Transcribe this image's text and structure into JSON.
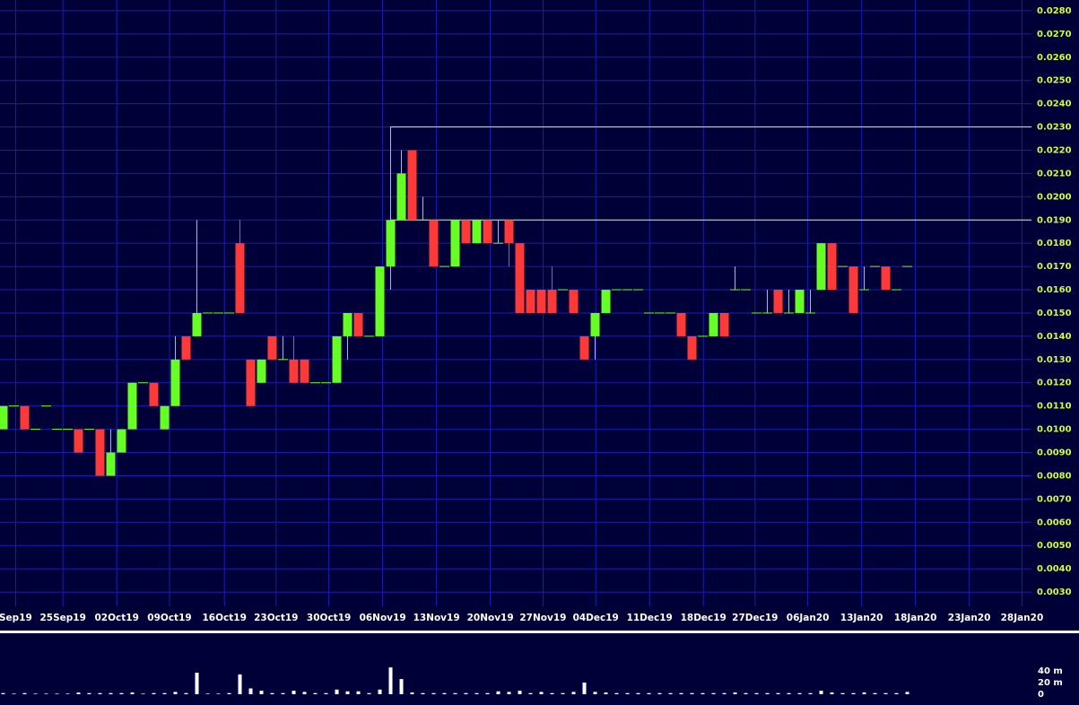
{
  "chart_data": {
    "type": "candlestick",
    "x": [
      0,
      1,
      2,
      3,
      4,
      5,
      6,
      7,
      8,
      9,
      10,
      11,
      12,
      13,
      14,
      15,
      16,
      17,
      18,
      19,
      20,
      21,
      22,
      23,
      24,
      25,
      26,
      27,
      28,
      29,
      30,
      31,
      32,
      33,
      34,
      35,
      36,
      37,
      38,
      39,
      40,
      41,
      42,
      43,
      44,
      45,
      46,
      47,
      48,
      49,
      50,
      51,
      52,
      53,
      54,
      55,
      56,
      57,
      58,
      59,
      60,
      61,
      62,
      63,
      64,
      65,
      66,
      67,
      68,
      69,
      70,
      71,
      72,
      73,
      74,
      75,
      76,
      77,
      78,
      79,
      80,
      81,
      82,
      83,
      84
    ],
    "open": [
      0.01,
      0.011,
      0.011,
      0.01,
      0.011,
      0.01,
      0.01,
      0.01,
      0.01,
      0.01,
      0.008,
      0.009,
      0.01,
      0.012,
      0.012,
      0.01,
      0.011,
      0.014,
      0.014,
      0.015,
      0.015,
      0.015,
      0.018,
      0.013,
      0.012,
      0.014,
      0.013,
      0.013,
      0.013,
      0.012,
      0.012,
      0.012,
      0.014,
      0.015,
      0.014,
      0.014,
      0.017,
      0.019,
      0.022,
      0.019,
      0.019,
      0.017,
      0.017,
      0.019,
      0.018,
      0.019,
      0.018,
      0.019,
      0.018,
      0.016,
      0.016,
      0.016,
      0.016,
      0.016,
      0.014,
      0.014,
      0.015,
      0.016,
      0.016,
      0.016,
      0.015,
      0.015,
      0.015,
      0.015,
      0.014,
      0.014,
      0.014,
      0.015,
      0.016,
      0.016,
      0.015,
      0.015,
      0.016,
      0.015,
      0.015,
      0.015,
      0.016,
      0.018,
      0.017,
      0.017,
      0.016,
      0.017,
      0.017,
      0.016,
      0.017
    ],
    "high": [
      0.011,
      0.011,
      0.011,
      0.01,
      0.011,
      0.01,
      0.01,
      0.01,
      0.01,
      0.01,
      0.01,
      0.01,
      0.012,
      0.012,
      0.012,
      0.011,
      0.014,
      0.014,
      0.019,
      0.015,
      0.015,
      0.015,
      0.019,
      0.013,
      0.013,
      0.014,
      0.014,
      0.014,
      0.013,
      0.012,
      0.012,
      0.014,
      0.015,
      0.015,
      0.014,
      0.017,
      0.023,
      0.022,
      0.022,
      0.02,
      0.019,
      0.017,
      0.019,
      0.019,
      0.019,
      0.019,
      0.019,
      0.019,
      0.018,
      0.016,
      0.016,
      0.017,
      0.016,
      0.016,
      0.014,
      0.015,
      0.016,
      0.016,
      0.016,
      0.016,
      0.015,
      0.015,
      0.015,
      0.015,
      0.014,
      0.014,
      0.015,
      0.015,
      0.017,
      0.016,
      0.015,
      0.016,
      0.016,
      0.016,
      0.016,
      0.016,
      0.018,
      0.018,
      0.017,
      0.017,
      0.017,
      0.017,
      0.017,
      0.016,
      0.017
    ],
    "low": [
      0.01,
      0.011,
      0.01,
      0.01,
      0.011,
      0.01,
      0.01,
      0.009,
      0.01,
      0.008,
      0.008,
      0.009,
      0.01,
      0.012,
      0.011,
      0.01,
      0.011,
      0.013,
      0.014,
      0.015,
      0.015,
      0.015,
      0.015,
      0.011,
      0.012,
      0.013,
      0.013,
      0.012,
      0.012,
      0.012,
      0.012,
      0.012,
      0.013,
      0.014,
      0.014,
      0.014,
      0.016,
      0.019,
      0.019,
      0.019,
      0.017,
      0.017,
      0.017,
      0.018,
      0.018,
      0.018,
      0.018,
      0.017,
      0.015,
      0.015,
      0.015,
      0.015,
      0.016,
      0.015,
      0.013,
      0.013,
      0.015,
      0.016,
      0.016,
      0.016,
      0.015,
      0.015,
      0.015,
      0.014,
      0.013,
      0.014,
      0.014,
      0.014,
      0.016,
      0.016,
      0.015,
      0.015,
      0.015,
      0.015,
      0.015,
      0.015,
      0.016,
      0.016,
      0.017,
      0.015,
      0.016,
      0.017,
      0.016,
      0.016,
      0.017
    ],
    "close": [
      0.011,
      0.011,
      0.01,
      0.01,
      0.011,
      0.01,
      0.01,
      0.009,
      0.01,
      0.008,
      0.009,
      0.01,
      0.012,
      0.012,
      0.011,
      0.011,
      0.013,
      0.013,
      0.015,
      0.015,
      0.015,
      0.015,
      0.015,
      0.011,
      0.013,
      0.013,
      0.013,
      0.012,
      0.012,
      0.012,
      0.012,
      0.014,
      0.015,
      0.014,
      0.014,
      0.017,
      0.019,
      0.021,
      0.019,
      0.019,
      0.017,
      0.017,
      0.019,
      0.018,
      0.019,
      0.018,
      0.018,
      0.018,
      0.015,
      0.015,
      0.015,
      0.015,
      0.016,
      0.015,
      0.013,
      0.015,
      0.016,
      0.016,
      0.016,
      0.016,
      0.015,
      0.015,
      0.015,
      0.014,
      0.013,
      0.014,
      0.015,
      0.014,
      0.016,
      0.016,
      0.015,
      0.015,
      0.015,
      0.015,
      0.016,
      0.015,
      0.018,
      0.016,
      0.017,
      0.015,
      0.016,
      0.017,
      0.016,
      0.016,
      0.017
    ],
    "up_color": "#66ff22",
    "down_color": "#ff3838",
    "xlim": [
      -0.25,
      95.58
    ],
    "xticks": [
      {
        "value": 1.2,
        "label": "Sep19"
      },
      {
        "value": 5.6,
        "label": "25Sep19"
      },
      {
        "value": 10.6,
        "label": "02Oct19"
      },
      {
        "value": 15.5,
        "label": "09Oct19"
      },
      {
        "value": 20.6,
        "label": "16Oct19"
      },
      {
        "value": 25.4,
        "label": "23Oct19"
      },
      {
        "value": 30.3,
        "label": "30Oct19"
      },
      {
        "value": 35.3,
        "label": "06Nov19"
      },
      {
        "value": 40.3,
        "label": "13Nov19"
      },
      {
        "value": 45.3,
        "label": "20Nov19"
      },
      {
        "value": 50.2,
        "label": "27Nov19"
      },
      {
        "value": 55.1,
        "label": "04Dec19"
      },
      {
        "value": 60.1,
        "label": "11Dec19"
      },
      {
        "value": 65.1,
        "label": "18Dec19"
      },
      {
        "value": 69.9,
        "label": "27Dec19"
      },
      {
        "value": 74.8,
        "label": "06Jan20"
      },
      {
        "value": 79.8,
        "label": "13Jan20"
      },
      {
        "value": 84.8,
        "label": "18Jan20"
      },
      {
        "value": 89.8,
        "label": "23Jan20"
      },
      {
        "value": 94.7,
        "label": "28Jan20"
      }
    ],
    "ylim": [
      0.00146,
      0.02846
    ],
    "yticks": [
      {
        "value": 0.003,
        "label": "0.0030"
      },
      {
        "value": 0.004,
        "label": "0.0040"
      },
      {
        "value": 0.005,
        "label": "0.0050"
      },
      {
        "value": 0.006,
        "label": "0.0060"
      },
      {
        "value": 0.007,
        "label": "0.0070"
      },
      {
        "value": 0.008,
        "label": "0.0080"
      },
      {
        "value": 0.009,
        "label": "0.0090"
      },
      {
        "value": 0.01,
        "label": "0.0100"
      },
      {
        "value": 0.011,
        "label": "0.0110"
      },
      {
        "value": 0.012,
        "label": "0.0120"
      },
      {
        "value": 0.013,
        "label": "0.0130"
      },
      {
        "value": 0.014,
        "label": "0.0140"
      },
      {
        "value": 0.015,
        "label": "0.0150"
      },
      {
        "value": 0.016,
        "label": "0.0160"
      },
      {
        "value": 0.017,
        "label": "0.0170"
      },
      {
        "value": 0.018,
        "label": "0.0180"
      },
      {
        "value": 0.019,
        "label": "0.0190"
      },
      {
        "value": 0.02,
        "label": "0.0200"
      },
      {
        "value": 0.021,
        "label": "0.0210"
      },
      {
        "value": 0.022,
        "label": "0.0220"
      },
      {
        "value": 0.023,
        "label": "0.0230"
      },
      {
        "value": 0.024,
        "label": "0.0240"
      },
      {
        "value": 0.025,
        "label": "0.0250"
      },
      {
        "value": 0.026,
        "label": "0.0260"
      },
      {
        "value": 0.027,
        "label": "0.0270"
      },
      {
        "value": 0.028,
        "label": "0.0280"
      }
    ],
    "grid": true,
    "grid_color": "#1c1cae",
    "hlines": [
      {
        "y": 0.023,
        "x_start": 36
      },
      {
        "y": 0.019,
        "x_start": 36
      }
    ],
    "hline_color": "#ccff66",
    "volume": {
      "values": [
        2,
        1,
        2,
        1,
        1,
        1,
        1,
        3,
        2,
        2,
        2,
        2,
        3,
        1,
        2,
        2,
        4,
        2,
        37,
        1,
        1,
        2,
        34,
        10,
        6,
        2,
        2,
        6,
        4,
        2,
        2,
        8,
        5,
        5,
        2,
        8,
        46,
        26,
        3,
        2,
        2,
        2,
        2,
        2,
        2,
        2,
        5,
        4,
        6,
        2,
        4,
        2,
        2,
        4,
        20,
        4,
        3,
        2,
        2,
        2,
        2,
        2,
        2,
        2,
        2,
        2,
        2,
        2,
        3,
        2,
        2,
        2,
        2,
        2,
        2,
        2,
        6,
        3,
        2,
        2,
        3,
        2,
        2,
        2,
        4
      ],
      "color": "#ffffff",
      "ylim": [
        0,
        100
      ],
      "yticks": [
        0,
        {
          "value": 20,
          "label": "20 m"
        },
        {
          "value": 40,
          "label": "40 m"
        }
      ]
    }
  }
}
